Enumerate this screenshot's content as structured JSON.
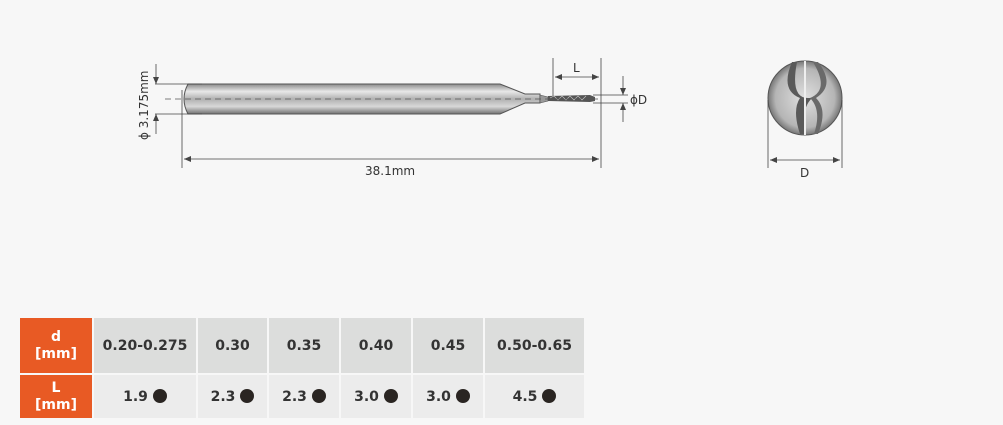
{
  "diagram": {
    "shank_diameter_label": "ϕ 3.175mm",
    "overall_length_label": "38.1mm",
    "flute_length_label": "L",
    "tip_diameter_label": "ϕD",
    "end_view_diameter_label": "D"
  },
  "table": {
    "row_d": {
      "header_top": "d",
      "header_bottom": "[mm]",
      "values": [
        "0.20-0.275",
        "0.30",
        "0.35",
        "0.40",
        "0.45",
        "0.50-0.65"
      ]
    },
    "row_L": {
      "header_top": "L",
      "header_bottom": "[mm]",
      "values": [
        "1.9",
        "2.3",
        "2.3",
        "3.0",
        "3.0",
        "4.5"
      ]
    },
    "header_color": "#e85a24",
    "dot_icon": "filled-circle"
  }
}
